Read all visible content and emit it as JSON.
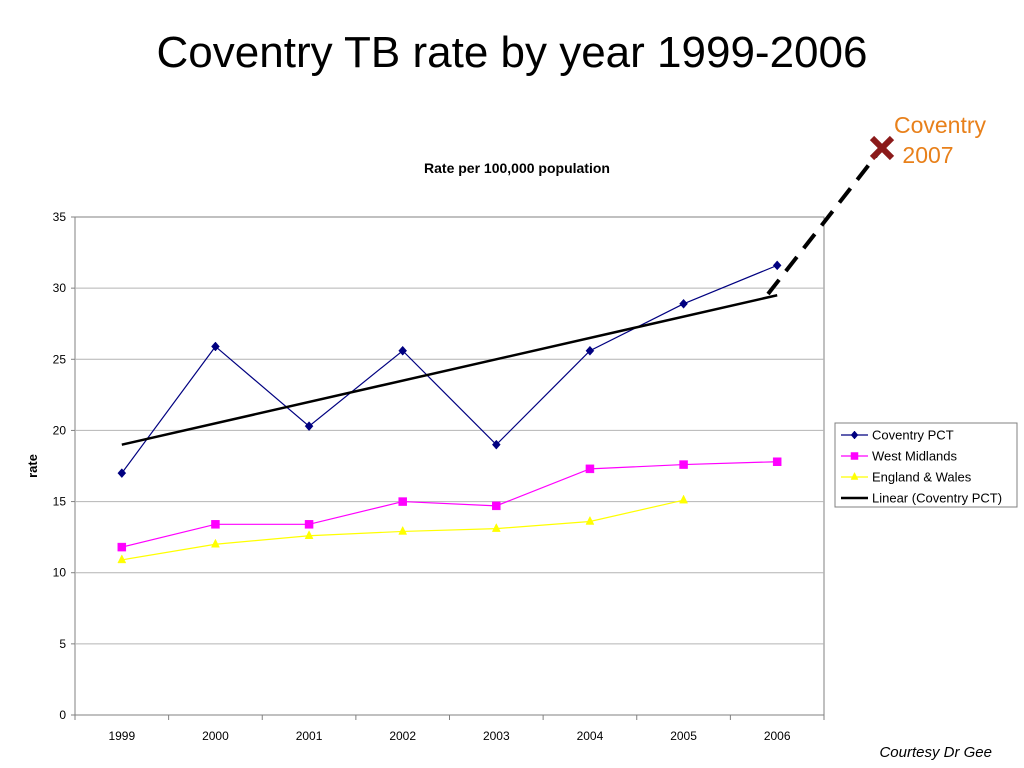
{
  "slide": {
    "title": "Coventry TB rate by year 1999-2006",
    "credit": "Courtesy Dr Gee"
  },
  "chart_data": {
    "type": "line",
    "title": "Rate per 100,000 population",
    "xlabel": "",
    "ylabel": "rate",
    "categories": [
      "1999",
      "2000",
      "2001",
      "2002",
      "2003",
      "2004",
      "2005",
      "2006"
    ],
    "ylim": [
      0,
      35
    ],
    "yticks": [
      0,
      5,
      10,
      15,
      20,
      25,
      30,
      35
    ],
    "grid": true,
    "legend_position": "right",
    "series": [
      {
        "name": "Coventry PCT",
        "color": "#000080",
        "marker": "diamond",
        "values": [
          17.0,
          25.9,
          20.3,
          25.6,
          19.0,
          25.6,
          28.9,
          31.6
        ]
      },
      {
        "name": "West Midlands",
        "color": "#ff00ff",
        "marker": "square",
        "values": [
          11.8,
          13.4,
          13.4,
          15.0,
          14.7,
          17.3,
          17.6,
          17.8
        ]
      },
      {
        "name": "England & Wales",
        "color": "#ffff00",
        "marker": "triangle",
        "values": [
          10.9,
          12.0,
          12.6,
          12.9,
          13.1,
          13.6,
          15.1,
          null
        ]
      }
    ],
    "trendline": {
      "name": "Linear (Coventry PCT)",
      "color": "#000000",
      "start": {
        "x": "1999",
        "y": 19.0
      },
      "end": {
        "x": "2006",
        "y": 29.5
      }
    },
    "annotation": {
      "line1": "Coventry",
      "line2": "2007",
      "color": "#e8801a",
      "marker_color": "#8b1a1a"
    }
  }
}
